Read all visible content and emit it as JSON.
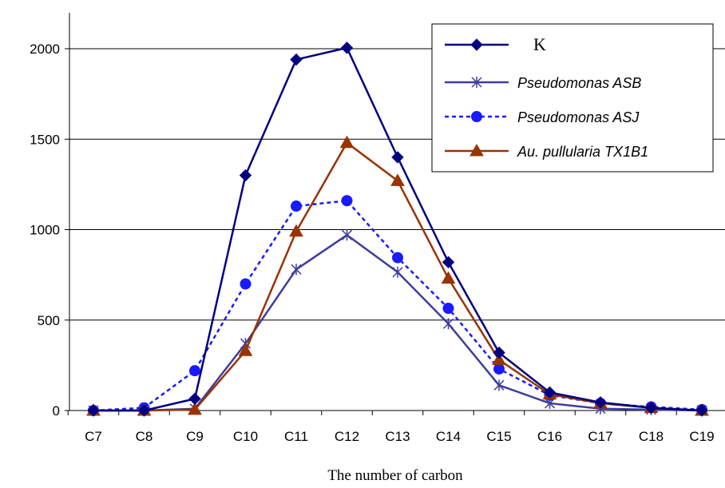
{
  "chart_data": {
    "type": "line",
    "categories": [
      "C7",
      "C8",
      "C9",
      "C10",
      "C11",
      "C12",
      "C13",
      "C14",
      "C15",
      "C16",
      "C17",
      "C18",
      "C19"
    ],
    "xlabel": "The number of carbon",
    "ylabel": "",
    "ylim": [
      0,
      2000
    ],
    "yticks": [
      0,
      500,
      1000,
      1500,
      2000
    ],
    "grid": "horizontal",
    "legend_position": "top-right",
    "series": [
      {
        "name": "K",
        "color": "#000080",
        "marker": "diamond",
        "dash": "solid",
        "values": [
          0,
          0,
          65,
          1300,
          1940,
          2005,
          1400,
          820,
          320,
          100,
          45,
          15,
          0
        ]
      },
      {
        "name": "Pseudomonas ASB",
        "color": "#3d3d9e",
        "marker": "asterisk",
        "dash": "solid",
        "values": [
          0,
          0,
          10,
          370,
          780,
          970,
          765,
          480,
          140,
          40,
          10,
          5,
          0
        ]
      },
      {
        "name": "Pseudomonas ASJ",
        "color": "#1a1aff",
        "marker": "circle",
        "dash": "dashed",
        "values": [
          0,
          15,
          220,
          700,
          1130,
          1160,
          845,
          565,
          230,
          85,
          40,
          20,
          5
        ]
      },
      {
        "name": "Au. pullularia TX1B1",
        "color": "#993300",
        "marker": "triangle",
        "dash": "solid",
        "values": [
          0,
          0,
          5,
          330,
          990,
          1480,
          1270,
          730,
          280,
          90,
          40,
          15,
          0
        ]
      }
    ]
  }
}
